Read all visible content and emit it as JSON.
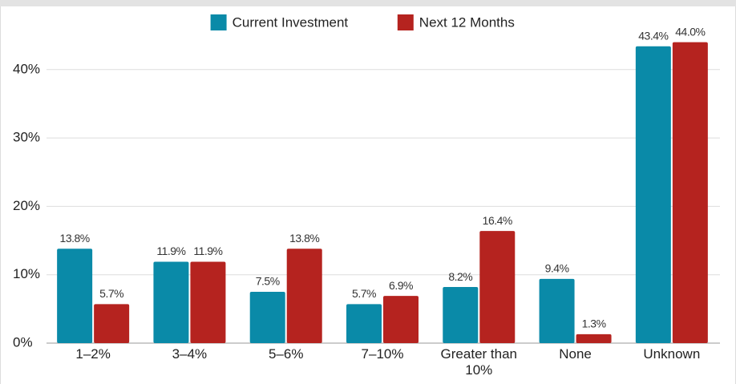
{
  "chart_data": {
    "type": "bar",
    "categories": [
      "1–2%",
      "3–4%",
      "5–6%",
      "7–10%",
      "Greater than 10%",
      "None",
      "Unknown"
    ],
    "series": [
      {
        "name": "Current Investment",
        "color": "#0a8aa8",
        "values": [
          13.8,
          11.9,
          7.5,
          5.7,
          8.2,
          9.4,
          43.4
        ],
        "value_labels": [
          "13.8%",
          "11.9%",
          "7.5%",
          "5.7%",
          "8.2%",
          "9.4%",
          "43.4%"
        ]
      },
      {
        "name": "Next 12 Months",
        "color": "#b5231f",
        "values": [
          5.7,
          11.9,
          13.8,
          6.9,
          16.4,
          1.3,
          44.0
        ],
        "value_labels": [
          "5.7%",
          "11.9%",
          "13.8%",
          "6.9%",
          "16.4%",
          "1.3%",
          "44.0%"
        ]
      }
    ],
    "ylim": [
      0,
      48
    ],
    "yticks": [
      {
        "value": 0,
        "label": "0%"
      },
      {
        "value": 10,
        "label": "10%"
      },
      {
        "value": 20,
        "label": "20%"
      },
      {
        "value": 30,
        "label": "30%"
      },
      {
        "value": 40,
        "label": "40%"
      }
    ],
    "grid": true,
    "legend": "top"
  }
}
